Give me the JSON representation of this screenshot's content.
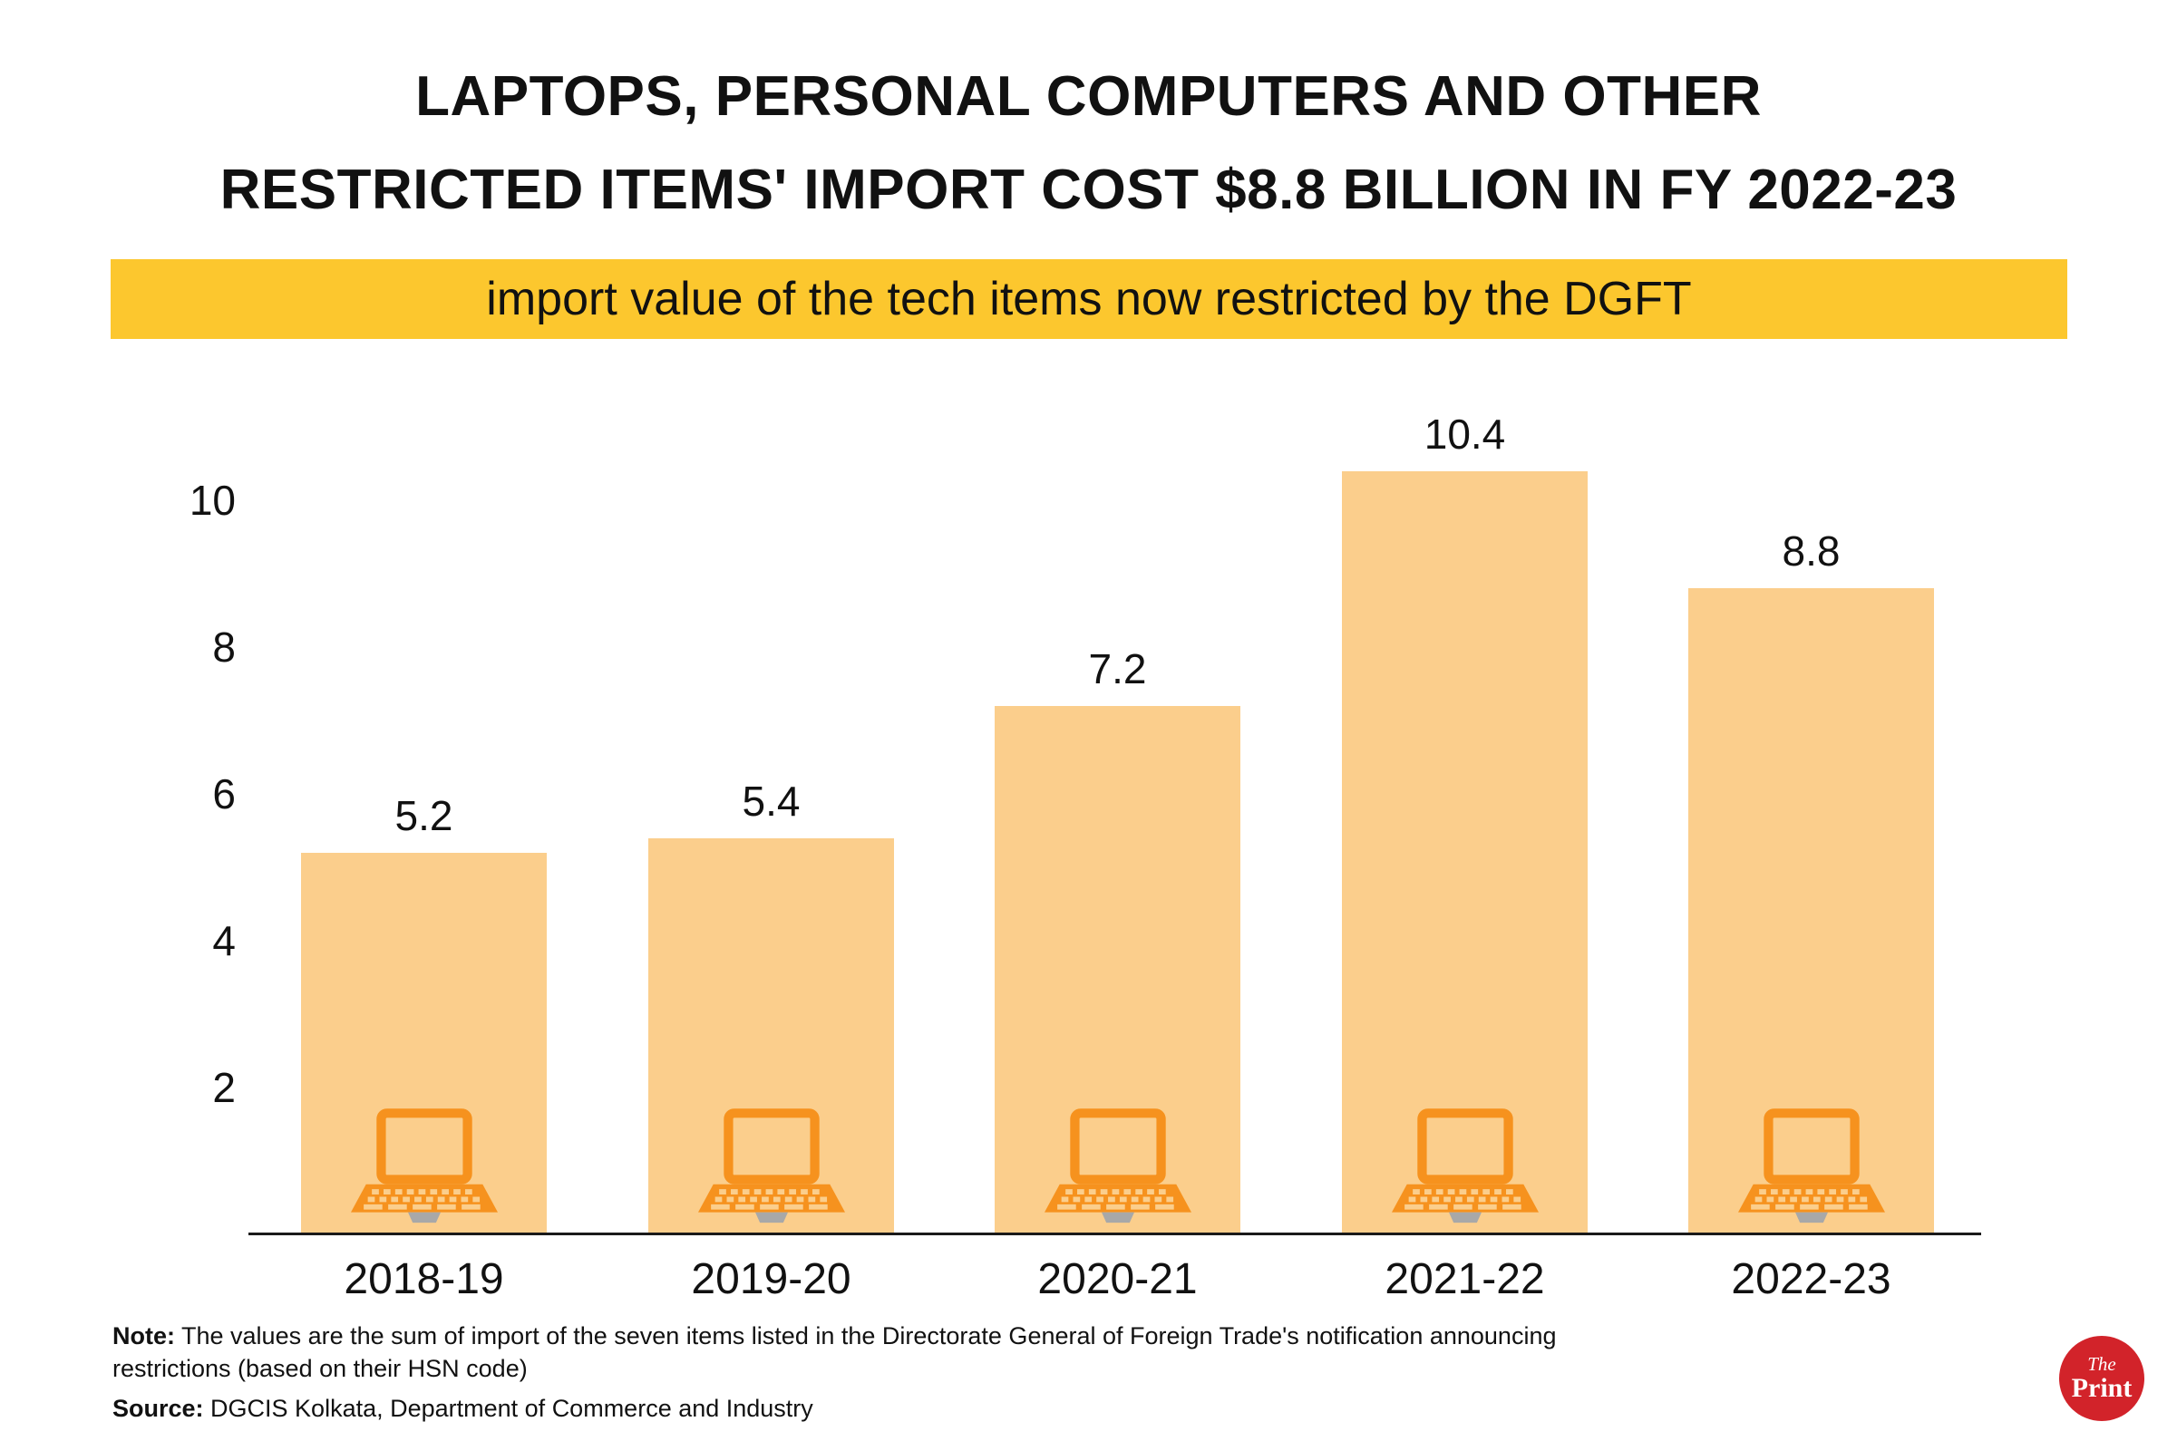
{
  "header": {
    "title_line1": "LAPTOPS, PERSONAL COMPUTERS AND OTHER",
    "title_line2": "RESTRICTED ITEMS' IMPORT COST $8.8 BILLION IN FY 2022-23",
    "subtitle": "import value of the tech items now restricted by the DGFT"
  },
  "chart_data": {
    "type": "bar",
    "title": "LAPTOPS, PERSONAL COMPUTERS AND OTHER RESTRICTED ITEMS' IMPORT COST $8.8 BILLION IN FY 2022-23",
    "subtitle": "import value of the tech items now restricted by the DGFT",
    "categories": [
      "2018-19",
      "2019-20",
      "2020-21",
      "2021-22",
      "2022-23"
    ],
    "values": [
      5.2,
      5.4,
      7.2,
      10.4,
      8.8
    ],
    "data_labels": [
      5.2,
      5.4,
      7.2,
      10.4,
      8.8
    ],
    "xlabel": "",
    "ylabel": "",
    "ylim": [
      0,
      10.4
    ],
    "yticks": [
      2,
      4,
      6,
      8,
      10
    ],
    "grid": false,
    "legend": "none",
    "bar_color": "#FBCE8C",
    "bar_icon": "laptop-icon",
    "bar_icon_color": "#F6921E"
  },
  "footer": {
    "note_label": "Note:",
    "note_text": " The values are the sum of import of the seven items listed in the Directorate General of Foreign Trade's notification announcing restrictions (based on their HSN code)",
    "source_label": "Source:",
    "source_text": " DGCIS Kolkata, Department of Commerce and Industry"
  },
  "logo": {
    "line1": "The",
    "line2": "Print"
  },
  "colors": {
    "highlight_yellow": "#FCC72E",
    "bar_fill": "#FBCE8C",
    "laptop_orange": "#F6921E",
    "logo_red": "#D2232A"
  }
}
